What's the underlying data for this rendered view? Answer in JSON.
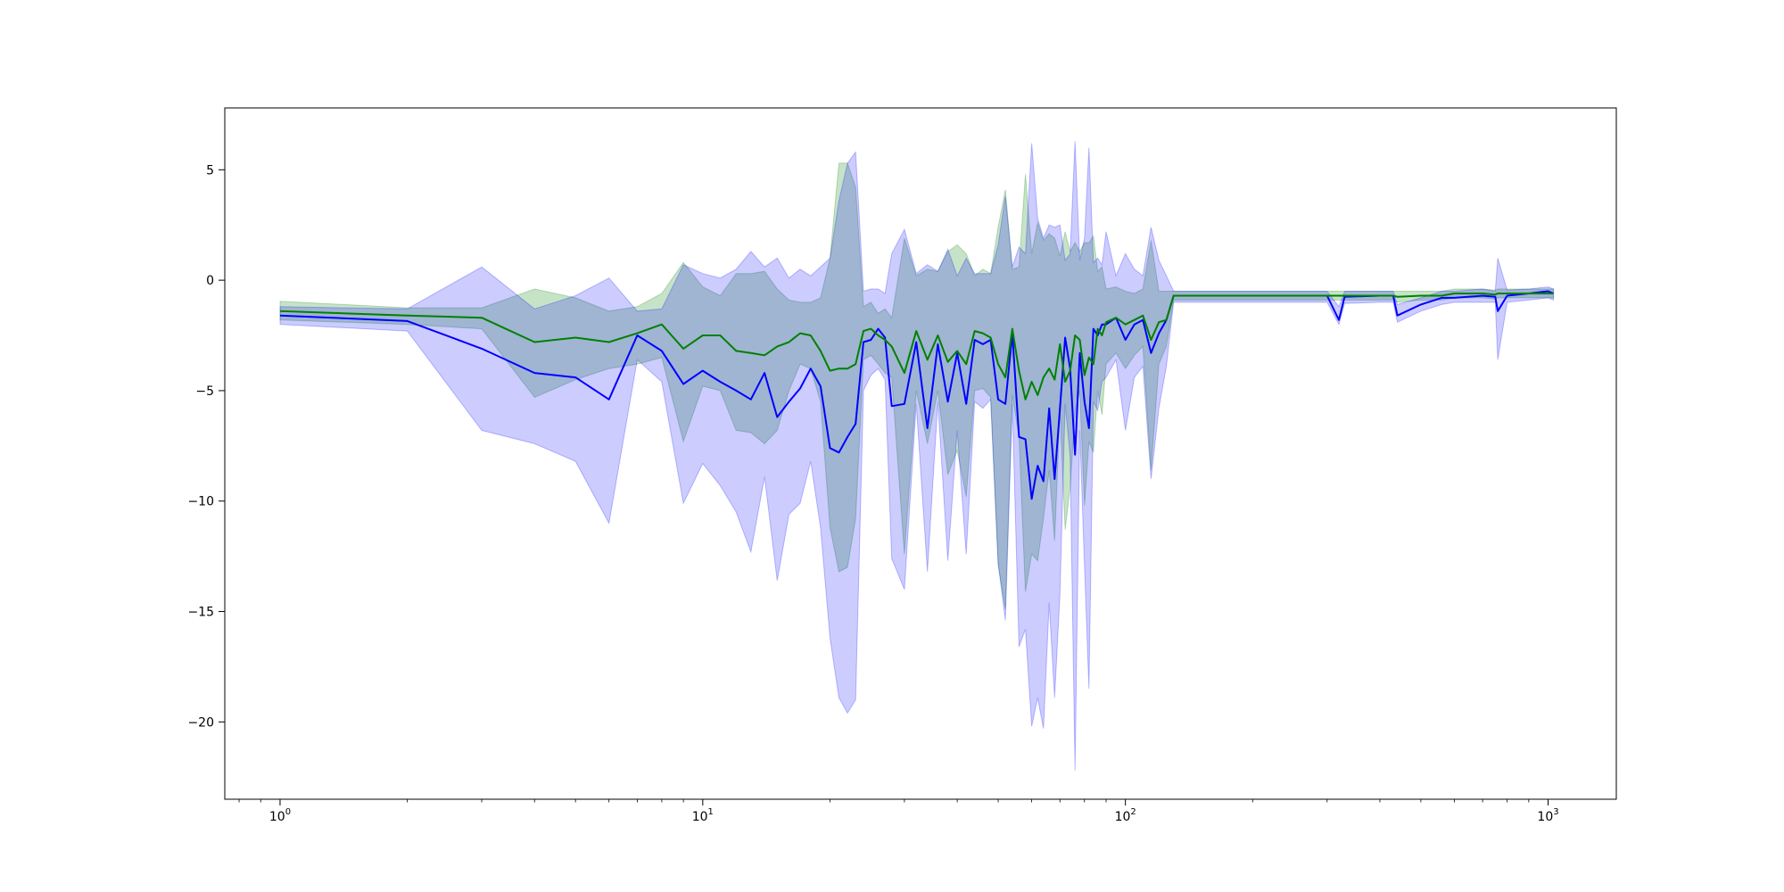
{
  "chart_data": {
    "type": "line",
    "title": "",
    "xlabel": "",
    "ylabel": "",
    "xscale": "log",
    "xlim": [
      0.74,
      1450
    ],
    "ylim": [
      -23.5,
      7.8
    ],
    "grid": false,
    "legend": "none",
    "x_ticks": [
      {
        "base": "10",
        "exp": "0",
        "value": 1
      },
      {
        "base": "10",
        "exp": "1",
        "value": 10
      },
      {
        "base": "10",
        "exp": "2",
        "value": 100
      },
      {
        "base": "10",
        "exp": "3",
        "value": 1000
      }
    ],
    "y_ticks": [
      {
        "label": "5",
        "value": 5
      },
      {
        "label": "0",
        "value": 0
      },
      {
        "label": "−5",
        "value": -5
      },
      {
        "label": "−10",
        "value": -10
      },
      {
        "label": "−15",
        "value": -15
      },
      {
        "label": "−20",
        "value": -20
      }
    ],
    "series": [
      {
        "color": "#008000",
        "band_color": "#008000",
        "band_opacity": 0.22,
        "x": [
          1,
          2,
          3,
          4,
          5,
          6,
          7,
          8,
          9,
          10,
          11,
          12,
          13,
          14,
          15,
          16,
          17,
          18,
          19,
          20,
          21,
          22,
          23,
          24,
          25,
          26,
          27,
          28,
          30,
          32,
          34,
          36,
          38,
          40,
          42,
          44,
          46,
          48,
          50,
          52,
          54,
          56,
          58,
          60,
          62,
          64,
          66,
          68,
          70,
          72,
          74,
          76,
          78,
          80,
          82,
          84,
          86,
          88,
          90,
          95,
          100,
          105,
          110,
          115,
          120,
          125,
          130,
          200,
          300,
          320,
          330,
          400,
          430,
          440,
          500,
          560,
          600,
          700,
          750,
          760,
          800,
          900,
          1000,
          1030
        ],
        "y": [
          -1.4,
          -1.6,
          -1.7,
          -2.8,
          -2.6,
          -2.8,
          -2.4,
          -2.0,
          -3.1,
          -2.5,
          -2.5,
          -3.2,
          -3.3,
          -3.4,
          -3.0,
          -2.8,
          -2.4,
          -2.5,
          -3.2,
          -4.1,
          -4.0,
          -4.0,
          -3.8,
          -2.3,
          -2.2,
          -2.5,
          -2.7,
          -3.0,
          -4.2,
          -2.3,
          -3.6,
          -2.5,
          -3.7,
          -3.2,
          -3.8,
          -2.3,
          -2.4,
          -2.6,
          -3.8,
          -4.4,
          -2.2,
          -4.1,
          -5.4,
          -4.6,
          -5.2,
          -4.4,
          -4.0,
          -4.5,
          -2.9,
          -4.6,
          -4.1,
          -2.5,
          -2.7,
          -4.3,
          -3.5,
          -3.8,
          -2.2,
          -2.5,
          -1.9,
          -1.7,
          -2.0,
          -1.8,
          -1.6,
          -2.7,
          -1.9,
          -1.8,
          -0.7,
          -0.7,
          -0.7,
          -0.7,
          -0.7,
          -0.7,
          -0.7,
          -0.75,
          -0.7,
          -0.7,
          -0.6,
          -0.6,
          -0.65,
          -0.6,
          -0.6,
          -0.6,
          -0.6,
          -0.6
        ],
        "lower": [
          -1.8,
          -2.0,
          -2.2,
          -5.3,
          -4.5,
          -4.0,
          -3.8,
          -3.5,
          -7.3,
          -4.8,
          -5.0,
          -6.8,
          -6.9,
          -7.4,
          -6.8,
          -5.0,
          -3.8,
          -4.0,
          -5.5,
          -11.2,
          -13.2,
          -13.0,
          -10.8,
          -3.6,
          -3.4,
          -3.8,
          -4.2,
          -4.4,
          -12.4,
          -5.0,
          -7.4,
          -5.0,
          -8.8,
          -7.7,
          -9.8,
          -5.0,
          -4.9,
          -5.3,
          -12.9,
          -14.9,
          -5.2,
          -7.1,
          -14.1,
          -12.4,
          -12.7,
          -10.8,
          -8.6,
          -11.8,
          -5.9,
          -11.3,
          -9.4,
          -6.0,
          -5.0,
          -10.2,
          -7.3,
          -7.8,
          -5.0,
          -6.1,
          -3.8,
          -3.3,
          -4.0,
          -3.4,
          -3.0,
          -8.6,
          -3.8,
          -3.0,
          -0.9,
          -0.9,
          -0.9,
          -0.9,
          -0.9,
          -0.9,
          -0.9,
          -1.0,
          -0.9,
          -0.9,
          -0.8,
          -0.8,
          -0.85,
          -0.8,
          -0.8,
          -0.8,
          -0.8,
          -0.8
        ],
        "upper": [
          -0.95,
          -1.25,
          -1.25,
          -0.4,
          -0.8,
          -1.4,
          -1.2,
          -0.6,
          0.8,
          -0.3,
          -0.7,
          0.3,
          0.3,
          0.4,
          -0.4,
          -0.9,
          -1.0,
          -1.0,
          -0.8,
          1.0,
          5.3,
          5.3,
          4.2,
          -1.2,
          -1.0,
          -1.5,
          -1.3,
          -1.7,
          1.9,
          0.2,
          0.5,
          0.4,
          1.3,
          1.6,
          1.2,
          0.2,
          0.5,
          0.3,
          2.4,
          4.1,
          0.5,
          0.6,
          4.8,
          1.2,
          2.6,
          1.8,
          2.1,
          1.9,
          1.1,
          2.2,
          1.3,
          1.7,
          1.3,
          1.7,
          1.7,
          2.0,
          0.4,
          0.6,
          -0.4,
          -0.3,
          -0.5,
          -0.6,
          -0.4,
          1.8,
          -0.5,
          -0.5,
          -0.5,
          -0.5,
          -0.5,
          -0.5,
          -0.5,
          -0.5,
          -0.5,
          -0.5,
          -0.5,
          -0.5,
          -0.4,
          -0.4,
          -0.45,
          -0.4,
          -0.4,
          -0.4,
          -0.4,
          -0.4
        ]
      },
      {
        "color": "#0000ff",
        "band_color": "#0000ff",
        "band_opacity": 0.2,
        "x": [
          1,
          2,
          3,
          4,
          5,
          6,
          7,
          8,
          9,
          10,
          11,
          12,
          13,
          14,
          15,
          16,
          17,
          18,
          19,
          20,
          21,
          22,
          23,
          24,
          25,
          26,
          27,
          28,
          30,
          32,
          34,
          36,
          38,
          40,
          42,
          44,
          46,
          48,
          50,
          52,
          54,
          56,
          58,
          60,
          62,
          64,
          66,
          68,
          70,
          72,
          74,
          76,
          78,
          80,
          82,
          84,
          86,
          88,
          90,
          95,
          100,
          105,
          110,
          115,
          120,
          125,
          130,
          200,
          300,
          320,
          330,
          400,
          430,
          440,
          500,
          560,
          600,
          700,
          750,
          760,
          800,
          900,
          1000,
          1030
        ],
        "y": [
          -1.6,
          -1.85,
          -3.1,
          -4.2,
          -4.4,
          -5.4,
          -2.5,
          -3.2,
          -4.7,
          -4.1,
          -4.6,
          -5.0,
          -5.4,
          -4.2,
          -6.2,
          -5.5,
          -4.9,
          -4.0,
          -4.8,
          -7.6,
          -7.8,
          -7.1,
          -6.5,
          -2.8,
          -2.7,
          -2.2,
          -2.6,
          -5.7,
          -5.6,
          -2.8,
          -6.7,
          -2.9,
          -5.5,
          -3.3,
          -5.6,
          -2.7,
          -2.9,
          -2.7,
          -5.4,
          -5.6,
          -2.4,
          -7.1,
          -7.2,
          -9.9,
          -8.4,
          -9.1,
          -5.8,
          -9.0,
          -5.8,
          -2.6,
          -4.0,
          -7.9,
          -3.3,
          -5.5,
          -6.7,
          -2.2,
          -2.5,
          -2.0,
          -2.0,
          -1.7,
          -2.7,
          -2.0,
          -1.8,
          -3.3,
          -2.4,
          -1.8,
          -0.7,
          -0.7,
          -0.7,
          -1.8,
          -0.75,
          -0.7,
          -0.7,
          -1.6,
          -1.1,
          -0.8,
          -0.8,
          -0.7,
          -0.75,
          -1.4,
          -0.7,
          -0.6,
          -0.5,
          -0.6
        ],
        "lower": [
          -2.0,
          -2.3,
          -6.8,
          -7.4,
          -8.2,
          -11.0,
          -3.6,
          -4.6,
          -10.1,
          -8.3,
          -9.3,
          -10.5,
          -12.3,
          -8.9,
          -13.6,
          -10.6,
          -10.1,
          -8.2,
          -11.2,
          -16.2,
          -18.9,
          -19.6,
          -19.0,
          -5.0,
          -4.3,
          -4.0,
          -4.5,
          -12.6,
          -14.0,
          -5.6,
          -13.2,
          -5.5,
          -12.7,
          -6.8,
          -12.4,
          -5.5,
          -5.8,
          -5.4,
          -12.8,
          -15.4,
          -5.6,
          -16.6,
          -15.8,
          -20.2,
          -18.9,
          -20.3,
          -14.6,
          -18.9,
          -14.2,
          -5.6,
          -8.0,
          -22.2,
          -6.8,
          -12.9,
          -18.5,
          -5.5,
          -5.9,
          -4.6,
          -4.4,
          -3.6,
          -6.8,
          -4.4,
          -3.9,
          -9.0,
          -5.8,
          -3.9,
          -1.0,
          -1.0,
          -1.0,
          -2.0,
          -1.05,
          -1.0,
          -1.0,
          -1.9,
          -1.4,
          -1.1,
          -1.0,
          -1.0,
          -1.0,
          -3.6,
          -1.0,
          -0.9,
          -0.8,
          -0.9
        ],
        "upper": [
          -1.2,
          -1.3,
          0.6,
          -1.3,
          -0.7,
          0.1,
          -1.4,
          -1.3,
          0.7,
          0.3,
          0.1,
          0.5,
          1.3,
          0.6,
          1.0,
          0.1,
          0.5,
          0.2,
          0.6,
          1.0,
          3.6,
          5.3,
          5.8,
          -0.5,
          -0.4,
          -0.4,
          -0.6,
          1.2,
          2.3,
          0.3,
          0.7,
          0.4,
          1.4,
          0.2,
          1.0,
          0.3,
          0.3,
          0.3,
          1.6,
          3.8,
          0.6,
          1.5,
          1.2,
          6.2,
          2.8,
          1.9,
          2.5,
          2.4,
          2.5,
          0.9,
          1.2,
          6.3,
          0.9,
          1.9,
          6.0,
          0.8,
          1.0,
          0.7,
          2.2,
          0.2,
          1.2,
          0.5,
          0.2,
          2.4,
          0.9,
          0.2,
          -0.5,
          -0.5,
          -0.5,
          -1.2,
          -0.5,
          -0.5,
          -0.5,
          -1.1,
          -0.8,
          -0.5,
          -0.5,
          -0.4,
          -0.5,
          1.0,
          -0.45,
          -0.4,
          -0.3,
          -0.4
        ]
      }
    ]
  }
}
